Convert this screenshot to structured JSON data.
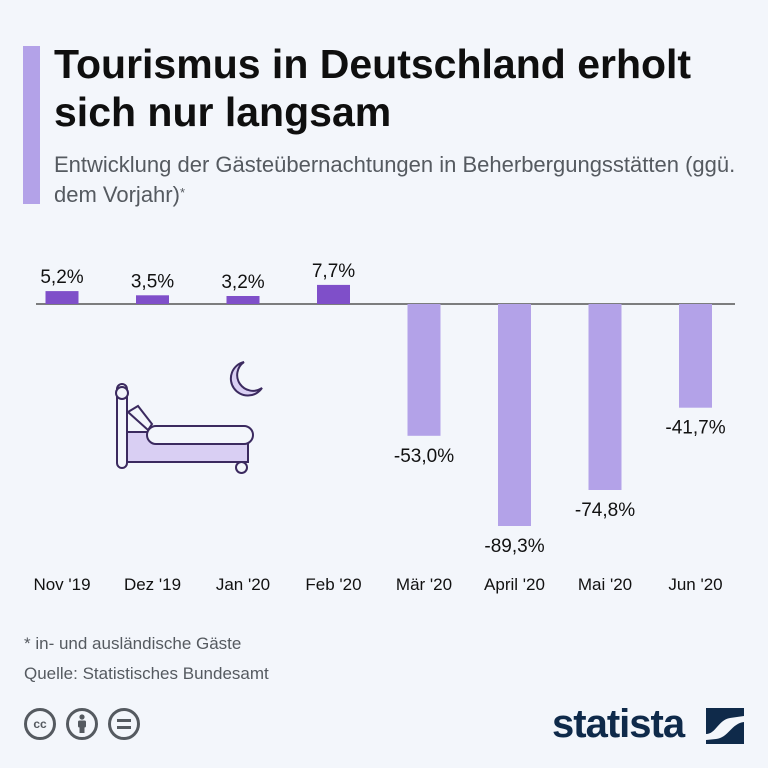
{
  "title": "Tourismus in Deutschland erholt sich nur langsam",
  "subtitle": "Entwicklung der Gästeübernachtungen in Beherbergungsstätten (ggü. dem Vorjahr)",
  "subtitle_mark": "*",
  "footnote": "* in- und ausländische Gäste",
  "source": "Quelle: Statistisches Bundesamt",
  "brand": "statista",
  "license_icons": [
    "cc-icon",
    "by-icon",
    "nd-icon"
  ],
  "license_cc_text": "cc",
  "colors": {
    "accent": "#b3a2e8",
    "positive": "#7f4fc9",
    "negative": "#b3a2e8",
    "brand": "#0f2a4a"
  },
  "decorations": [
    "bed-icon",
    "moon-icon"
  ],
  "chart_data": {
    "type": "bar",
    "categories": [
      "Nov '19",
      "Dez '19",
      "Jan '20",
      "Feb '20",
      "Mär '20",
      "April '20",
      "Mai '20",
      "Jun '20"
    ],
    "values": [
      5.2,
      3.5,
      3.2,
      7.7,
      -53.0,
      -89.3,
      -74.8,
      -41.7
    ],
    "value_labels": [
      "5,2%",
      "3,5%",
      "3,2%",
      "7,7%",
      "-53,0%",
      "-89,3%",
      "-74,8%",
      "-41,7%"
    ],
    "unit": "%",
    "ylim": [
      -89.3,
      7.7
    ],
    "grid": false,
    "legend": "none"
  }
}
